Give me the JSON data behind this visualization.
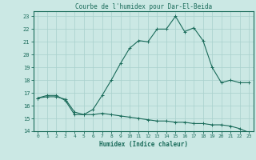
{
  "title": "Courbe de l'humidex pour Dar-El-Beida",
  "xlabel": "Humidex (Indice chaleur)",
  "bg_color": "#cbe8e4",
  "grid_color": "#a8d0cc",
  "line_color": "#1a6b5a",
  "xlim": [
    -0.5,
    23.5
  ],
  "ylim": [
    14,
    23.4
  ],
  "xtick_vals": [
    0,
    1,
    2,
    3,
    4,
    5,
    6,
    7,
    8,
    9,
    10,
    11,
    12,
    13,
    14,
    15,
    16,
    17,
    18,
    19,
    20,
    21,
    22,
    23
  ],
  "ytick_vals": [
    14,
    15,
    16,
    17,
    18,
    19,
    20,
    21,
    22,
    23
  ],
  "curve1_x": [
    0,
    1,
    2,
    3,
    4,
    5,
    6,
    7,
    8,
    9,
    10,
    11,
    12,
    13,
    14,
    15,
    16,
    17,
    18,
    19,
    20,
    21,
    22,
    23
  ],
  "curve1_y": [
    16.6,
    16.8,
    16.8,
    16.4,
    15.3,
    15.3,
    15.7,
    16.8,
    18.0,
    19.3,
    20.5,
    21.1,
    21.0,
    22.0,
    22.0,
    23.0,
    21.8,
    22.1,
    21.1,
    19.0,
    17.8,
    18.0,
    17.8,
    17.8
  ],
  "curve2_x": [
    0,
    1,
    2,
    3,
    4,
    5,
    6,
    7,
    8,
    9,
    10,
    11,
    12,
    13,
    14,
    15,
    16,
    17,
    18,
    19,
    20,
    21,
    22,
    23
  ],
  "curve2_y": [
    16.6,
    16.7,
    16.7,
    16.5,
    15.5,
    15.3,
    15.3,
    15.4,
    15.3,
    15.2,
    15.1,
    15.0,
    14.9,
    14.8,
    14.8,
    14.7,
    14.7,
    14.6,
    14.6,
    14.5,
    14.5,
    14.4,
    14.2,
    13.9
  ]
}
